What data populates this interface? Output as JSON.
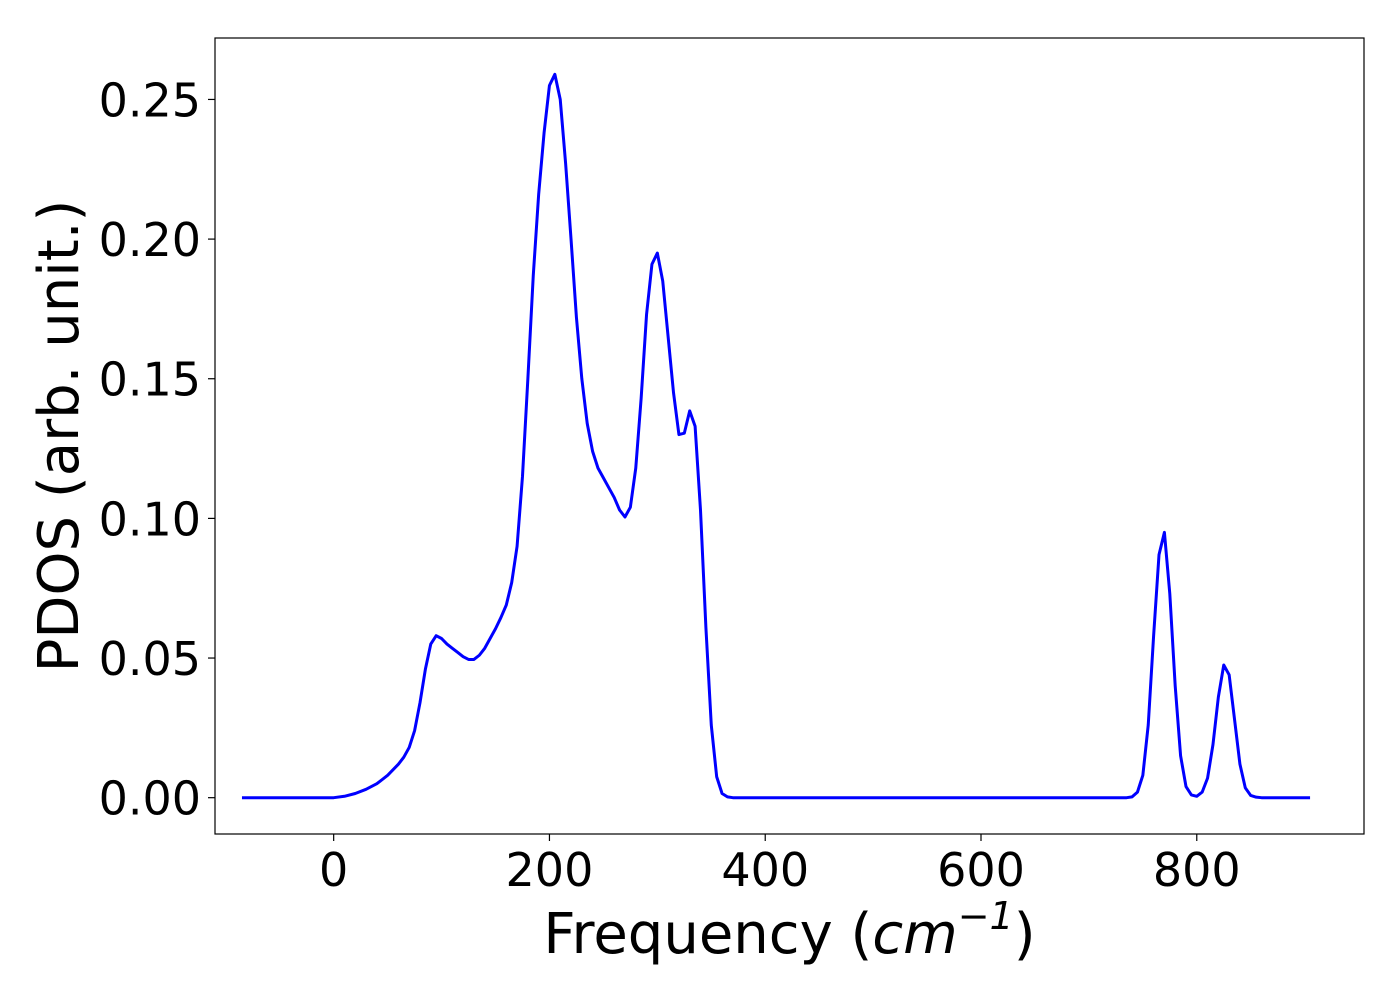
{
  "chart_data": {
    "type": "line",
    "title": "",
    "xlabel": "Frequency (",
    "xlabel_math": "cm",
    "xlabel_sup": "−1",
    "xlabel_end": ")",
    "ylabel": "PDOS (arb. unit.)",
    "xlim": [
      -110,
      955
    ],
    "ylim": [
      -0.013,
      0.272
    ],
    "x_ticks": [
      0,
      200,
      400,
      600,
      800
    ],
    "x_tick_labels": [
      "0",
      "200",
      "400",
      "600",
      "800"
    ],
    "y_ticks": [
      0.0,
      0.05,
      0.1,
      0.15,
      0.2,
      0.25
    ],
    "y_tick_labels": [
      "0.00",
      "0.05",
      "0.10",
      "0.15",
      "0.20",
      "0.25"
    ],
    "grid": false,
    "legend": "none",
    "color": "#0000ff",
    "series": [
      {
        "x": [
          -85,
          -60,
          -40,
          -20,
          0,
          10,
          20,
          30,
          40,
          50,
          60,
          65,
          70,
          75,
          80,
          85,
          90,
          95,
          100,
          105,
          110,
          115,
          120,
          125,
          130,
          135,
          140,
          145,
          150,
          155,
          160,
          165,
          170,
          175,
          180,
          185,
          190,
          195,
          200,
          205,
          210,
          215,
          220,
          225,
          230,
          235,
          240,
          245,
          250,
          255,
          260,
          265,
          270,
          275,
          280,
          285,
          290,
          295,
          300,
          305,
          310,
          315,
          320,
          325,
          330,
          335,
          340,
          345,
          350,
          355,
          360,
          365,
          370,
          380,
          400,
          450,
          500,
          550,
          600,
          650,
          700,
          720,
          735,
          740,
          745,
          750,
          755,
          760,
          765,
          770,
          775,
          780,
          785,
          790,
          795,
          800,
          805,
          810,
          815,
          820,
          825,
          830,
          835,
          840,
          845,
          850,
          855,
          860,
          870,
          890,
          905
        ],
        "y": [
          0,
          0,
          0,
          0,
          0,
          0.0005,
          0.0015,
          0.003,
          0.005,
          0.008,
          0.012,
          0.0145,
          0.018,
          0.024,
          0.034,
          0.046,
          0.055,
          0.058,
          0.057,
          0.055,
          0.0535,
          0.052,
          0.0505,
          0.0495,
          0.0495,
          0.051,
          0.0535,
          0.057,
          0.0605,
          0.0645,
          0.069,
          0.077,
          0.09,
          0.115,
          0.15,
          0.187,
          0.216,
          0.238,
          0.255,
          0.259,
          0.25,
          0.227,
          0.2,
          0.172,
          0.15,
          0.134,
          0.124,
          0.118,
          0.1145,
          0.111,
          0.1075,
          0.103,
          0.1005,
          0.104,
          0.118,
          0.143,
          0.173,
          0.191,
          0.195,
          0.185,
          0.165,
          0.145,
          0.13,
          0.1305,
          0.1385,
          0.133,
          0.103,
          0.061,
          0.026,
          0.0075,
          0.0015,
          0.0003,
          0,
          0,
          0,
          0,
          0,
          0,
          0,
          0,
          0,
          0,
          0,
          0.0003,
          0.002,
          0.008,
          0.026,
          0.058,
          0.087,
          0.095,
          0.073,
          0.04,
          0.015,
          0.004,
          0.001,
          0.0005,
          0.002,
          0.007,
          0.019,
          0.036,
          0.0475,
          0.044,
          0.028,
          0.012,
          0.0035,
          0.0008,
          0.0002,
          0,
          0,
          0,
          0
        ]
      }
    ]
  }
}
